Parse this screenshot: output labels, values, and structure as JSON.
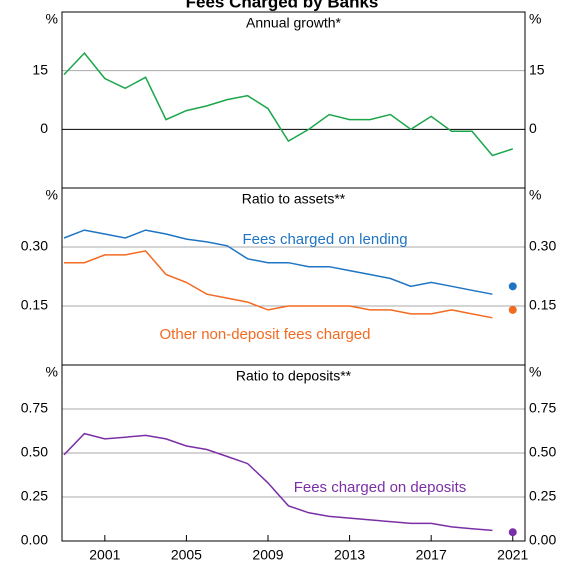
{
  "title": "Fees Charged by Banks",
  "chart_data": [
    {
      "type": "line",
      "title": "Annual growth*",
      "unit": "%",
      "x": [
        1999,
        2000,
        2001,
        2002,
        2003,
        2004,
        2005,
        2006,
        2007,
        2008,
        2009,
        2010,
        2011,
        2012,
        2013,
        2014,
        2015,
        2016,
        2017,
        2018,
        2019,
        2020,
        2021
      ],
      "xlim": [
        1998.9,
        2021.6
      ],
      "ylim": [
        -15,
        30
      ],
      "yticks": [
        0,
        15
      ],
      "grid": true,
      "series": [
        {
          "color": "#1aa64a",
          "values": [
            14,
            19.5,
            13,
            10.5,
            13.3,
            2.5,
            4.8,
            6,
            7.6,
            8.6,
            5.3,
            -3,
            0,
            3.8,
            2.5,
            2.5,
            3.8,
            0,
            3.3,
            -0.5,
            -0.5,
            -6.7,
            -5
          ]
        }
      ]
    },
    {
      "type": "line",
      "title": "Ratio to assets**",
      "unit": "%",
      "x": [
        1999,
        2000,
        2001,
        2002,
        2003,
        2004,
        2005,
        2006,
        2007,
        2008,
        2009,
        2010,
        2011,
        2012,
        2013,
        2014,
        2015,
        2016,
        2017,
        2018,
        2019,
        2020,
        2021
      ],
      "xlim": [
        1998.9,
        2021.6
      ],
      "ylim": [
        0,
        0.45
      ],
      "yticks": [
        {
          "value": 0.15,
          "label": "0.15"
        },
        {
          "value": 0.3,
          "label": "0.30"
        }
      ],
      "grid": true,
      "series": [
        {
          "name": "Fees charged on lending",
          "color": "#1f74c4",
          "values": [
            0.323,
            0.343,
            0.333,
            0.323,
            0.343,
            0.333,
            0.32,
            0.313,
            0.303,
            0.27,
            0.26,
            0.26,
            0.25,
            0.25,
            0.24,
            0.23,
            0.22,
            0.2,
            0.21,
            0.2,
            0.19,
            0.18,
            null
          ]
        },
        {
          "name": "Other non-deposit fees charged",
          "color": "#f36a21",
          "values": [
            0.26,
            0.26,
            0.28,
            0.28,
            0.29,
            0.23,
            0.21,
            0.18,
            0.17,
            0.16,
            0.14,
            0.15,
            0.15,
            0.15,
            0.15,
            0.14,
            0.14,
            0.13,
            0.13,
            0.14,
            0.13,
            0.12,
            null
          ]
        },
        {
          "color": "#1f74c4",
          "marker": "dot",
          "values": [
            null,
            null,
            null,
            null,
            null,
            null,
            null,
            null,
            null,
            null,
            null,
            null,
            null,
            null,
            null,
            null,
            null,
            null,
            null,
            null,
            null,
            null,
            0.2
          ]
        },
        {
          "color": "#f36a21",
          "marker": "dot",
          "values": [
            null,
            null,
            null,
            null,
            null,
            null,
            null,
            null,
            null,
            null,
            null,
            null,
            null,
            null,
            null,
            null,
            null,
            null,
            null,
            null,
            null,
            null,
            0.14
          ]
        }
      ]
    },
    {
      "type": "line",
      "title": "Ratio to deposits**",
      "unit": "%",
      "x": [
        1999,
        2000,
        2001,
        2002,
        2003,
        2004,
        2005,
        2006,
        2007,
        2008,
        2009,
        2010,
        2011,
        2012,
        2013,
        2014,
        2015,
        2016,
        2017,
        2018,
        2019,
        2020,
        2021
      ],
      "xlim": [
        1998.9,
        2021.6
      ],
      "ylim": [
        0,
        1.0
      ],
      "yticks": [
        {
          "value": 0,
          "label": "0.00"
        },
        {
          "value": 0.25,
          "label": "0.25"
        },
        {
          "value": 0.5,
          "label": "0.50"
        },
        {
          "value": 0.75,
          "label": "0.75"
        }
      ],
      "grid": true,
      "xticks": [
        2001,
        2005,
        2009,
        2013,
        2017,
        2021
      ],
      "series": [
        {
          "name": "Fees charged on deposits",
          "color": "#7b2fa6",
          "values": [
            0.49,
            0.61,
            0.58,
            0.59,
            0.6,
            0.58,
            0.54,
            0.52,
            0.48,
            0.44,
            0.33,
            0.2,
            0.16,
            0.14,
            0.13,
            0.12,
            0.11,
            0.1,
            0.1,
            0.08,
            0.07,
            0.06,
            null
          ]
        },
        {
          "color": "#7b2fa6",
          "marker": "dot",
          "values": [
            null,
            null,
            null,
            null,
            null,
            null,
            null,
            null,
            null,
            null,
            null,
            null,
            null,
            null,
            null,
            null,
            null,
            null,
            null,
            null,
            null,
            null,
            0.05
          ]
        }
      ]
    }
  ]
}
